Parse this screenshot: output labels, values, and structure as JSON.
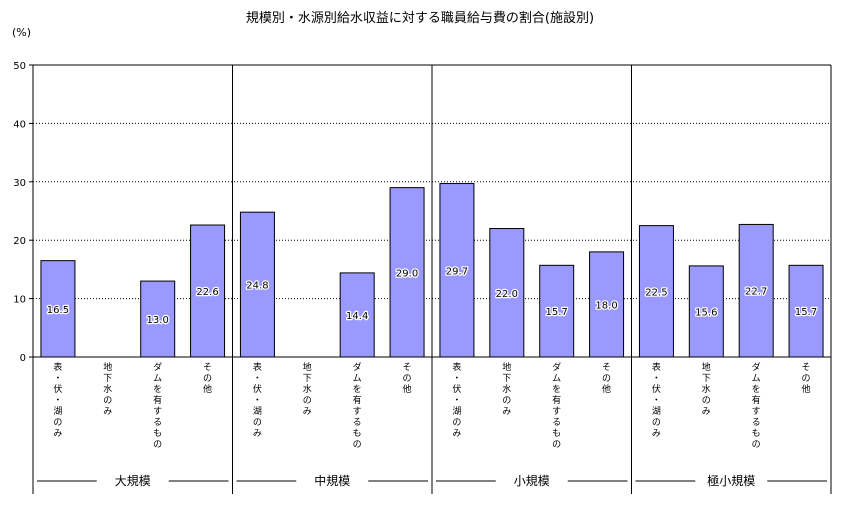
{
  "chart_data": {
    "type": "bar",
    "title": "規模別・水源別給水収益に対する職員給与費の割合(施設別)",
    "y_unit": "(%)",
    "ylim": [
      0,
      50
    ],
    "y_ticks": [
      "0",
      "10",
      "20",
      "30",
      "40",
      "50"
    ],
    "grid": true,
    "groups": [
      "大規模",
      "中規模",
      "小規模",
      "極小規模"
    ],
    "categories": [
      "表・伏・湖のみ",
      "地下水のみ",
      "ダムを有するもの",
      "その他"
    ],
    "values": [
      [
        16.5,
        null,
        13.0,
        22.6
      ],
      [
        24.8,
        null,
        14.4,
        29.0
      ],
      [
        29.7,
        22.0,
        15.7,
        18.0
      ],
      [
        22.5,
        15.6,
        22.7,
        15.7
      ]
    ],
    "value_labels": [
      [
        "16.5",
        "",
        "13.0",
        "22.6"
      ],
      [
        "24.8",
        "",
        "14.4",
        "29.0"
      ],
      [
        "29.7",
        "22.0",
        "15.7",
        "18.0"
      ],
      [
        "22.5",
        "15.6",
        "22.7",
        "15.7"
      ]
    ],
    "colors": {
      "bar_fill": "#9999ff",
      "bar_stroke": "#000000",
      "grid": "#000000"
    }
  }
}
